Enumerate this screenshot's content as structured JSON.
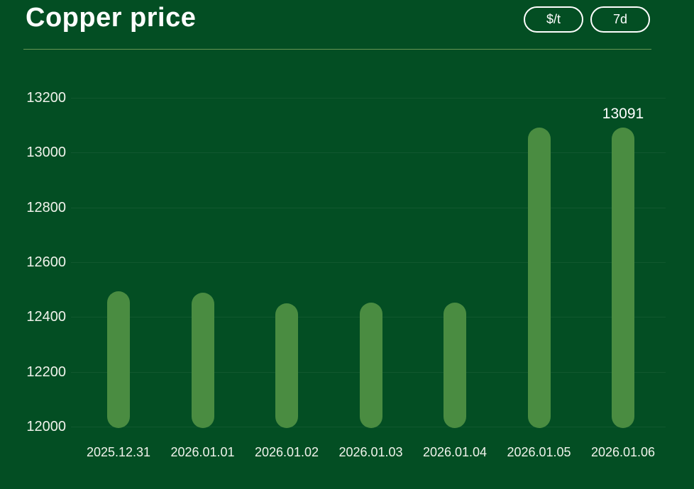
{
  "chart_data": {
    "type": "bar",
    "title": "Copper price",
    "unit": "$/t",
    "time_range": "7d",
    "categories": [
      "2025.12.31",
      "2026.01.01",
      "2026.01.02",
      "2026.01.03",
      "2026.01.04",
      "2026.01.05",
      "2026.01.06"
    ],
    "values": [
      12495,
      12490,
      12450,
      12452,
      12452,
      13092,
      13091
    ],
    "annotations": [
      {
        "category": "2026.01.06",
        "value": 13091,
        "text": "13091"
      }
    ],
    "xlabel": "",
    "ylabel": "",
    "ylim": [
      12000,
      13200
    ],
    "yticks": [
      12000,
      12200,
      12400,
      12600,
      12800,
      13000,
      13200
    ],
    "grid": true,
    "legend": false,
    "colors": {
      "background": "#034e23",
      "bar": "#4a8c41",
      "text": "#f1f3ec",
      "title": "#ffffff",
      "gridline": "rgba(255,255,255,0.06)",
      "divider": "#7aa55c"
    }
  }
}
